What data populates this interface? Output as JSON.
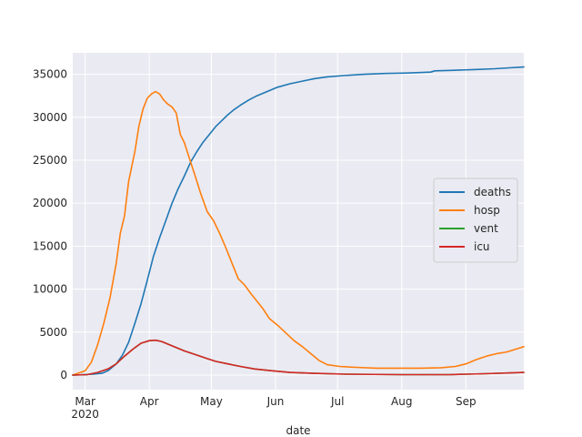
{
  "chart_data": {
    "type": "line",
    "title": "",
    "xlabel": "date",
    "ylabel": "",
    "grid": true,
    "legend_position": "center-right",
    "xlim": [
      "2020-02-24",
      "2020-09-29"
    ],
    "ylim": [
      -1700,
      37500
    ],
    "x_ticks": [
      {
        "date": "2020-03-01",
        "label": "Mar",
        "sublabel": "2020"
      },
      {
        "date": "2020-04-01",
        "label": "Apr",
        "sublabel": ""
      },
      {
        "date": "2020-05-01",
        "label": "May",
        "sublabel": ""
      },
      {
        "date": "2020-06-01",
        "label": "Jun",
        "sublabel": ""
      },
      {
        "date": "2020-07-01",
        "label": "Jul",
        "sublabel": ""
      },
      {
        "date": "2020-08-01",
        "label": "Aug",
        "sublabel": ""
      },
      {
        "date": "2020-09-01",
        "label": "Sep",
        "sublabel": ""
      }
    ],
    "y_ticks": [
      0,
      5000,
      10000,
      15000,
      20000,
      25000,
      30000,
      35000
    ],
    "series": [
      {
        "name": "deaths",
        "color": "#1f77b4",
        "points": [
          [
            "2020-02-24",
            0
          ],
          [
            "2020-03-05",
            100
          ],
          [
            "2020-03-09",
            200
          ],
          [
            "2020-03-12",
            500
          ],
          [
            "2020-03-16",
            1300
          ],
          [
            "2020-03-19",
            2300
          ],
          [
            "2020-03-22",
            3800
          ],
          [
            "2020-03-25",
            6000
          ],
          [
            "2020-03-28",
            8300
          ],
          [
            "2020-03-31",
            11000
          ],
          [
            "2020-04-03",
            13800
          ],
          [
            "2020-04-06",
            16000
          ],
          [
            "2020-04-09",
            18000
          ],
          [
            "2020-04-12",
            20000
          ],
          [
            "2020-04-15",
            21700
          ],
          [
            "2020-04-18",
            23200
          ],
          [
            "2020-04-21",
            24800
          ],
          [
            "2020-04-24",
            26000
          ],
          [
            "2020-04-27",
            27100
          ],
          [
            "2020-04-30",
            28000
          ],
          [
            "2020-05-03",
            28900
          ],
          [
            "2020-05-06",
            29600
          ],
          [
            "2020-05-09",
            30300
          ],
          [
            "2020-05-12",
            30900
          ],
          [
            "2020-05-15",
            31400
          ],
          [
            "2020-05-19",
            32000
          ],
          [
            "2020-05-23",
            32500
          ],
          [
            "2020-05-28",
            33000
          ],
          [
            "2020-06-02",
            33500
          ],
          [
            "2020-06-08",
            33900
          ],
          [
            "2020-06-14",
            34200
          ],
          [
            "2020-06-20",
            34500
          ],
          [
            "2020-06-26",
            34700
          ],
          [
            "2020-07-04",
            34850
          ],
          [
            "2020-07-14",
            35000
          ],
          [
            "2020-07-24",
            35100
          ],
          [
            "2020-08-04",
            35150
          ],
          [
            "2020-08-15",
            35250
          ],
          [
            "2020-08-17",
            35400
          ],
          [
            "2020-08-25",
            35450
          ],
          [
            "2020-09-05",
            35550
          ],
          [
            "2020-09-15",
            35650
          ],
          [
            "2020-09-22",
            35750
          ],
          [
            "2020-09-29",
            35850
          ]
        ]
      },
      {
        "name": "hosp",
        "color": "#ff7f0e",
        "points": [
          [
            "2020-02-24",
            0
          ],
          [
            "2020-03-01",
            500
          ],
          [
            "2020-03-04",
            1500
          ],
          [
            "2020-03-07",
            3500
          ],
          [
            "2020-03-10",
            6000
          ],
          [
            "2020-03-13",
            9000
          ],
          [
            "2020-03-16",
            13000
          ],
          [
            "2020-03-18",
            16500
          ],
          [
            "2020-03-20",
            18500
          ],
          [
            "2020-03-22",
            22500
          ],
          [
            "2020-03-25",
            26000
          ],
          [
            "2020-03-27",
            29000
          ],
          [
            "2020-03-29",
            31000
          ],
          [
            "2020-03-31",
            32200
          ],
          [
            "2020-04-02",
            32700
          ],
          [
            "2020-04-04",
            33000
          ],
          [
            "2020-04-06",
            32700
          ],
          [
            "2020-04-08",
            32000
          ],
          [
            "2020-04-10",
            31500
          ],
          [
            "2020-04-12",
            31200
          ],
          [
            "2020-04-14",
            30500
          ],
          [
            "2020-04-16",
            28000
          ],
          [
            "2020-04-18",
            27000
          ],
          [
            "2020-04-20",
            25500
          ],
          [
            "2020-04-23",
            23300
          ],
          [
            "2020-04-26",
            21000
          ],
          [
            "2020-04-29",
            19000
          ],
          [
            "2020-05-02",
            18000
          ],
          [
            "2020-05-05",
            16500
          ],
          [
            "2020-05-08",
            14800
          ],
          [
            "2020-05-11",
            13000
          ],
          [
            "2020-05-14",
            11200
          ],
          [
            "2020-05-17",
            10500
          ],
          [
            "2020-05-20",
            9500
          ],
          [
            "2020-05-23",
            8600
          ],
          [
            "2020-05-26",
            7700
          ],
          [
            "2020-05-29",
            6600
          ],
          [
            "2020-06-02",
            5800
          ],
          [
            "2020-06-06",
            4900
          ],
          [
            "2020-06-10",
            4000
          ],
          [
            "2020-06-14",
            3300
          ],
          [
            "2020-06-18",
            2500
          ],
          [
            "2020-06-22",
            1700
          ],
          [
            "2020-06-26",
            1200
          ],
          [
            "2020-07-02",
            1000
          ],
          [
            "2020-07-10",
            900
          ],
          [
            "2020-07-20",
            800
          ],
          [
            "2020-07-31",
            800
          ],
          [
            "2020-08-10",
            800
          ],
          [
            "2020-08-20",
            850
          ],
          [
            "2020-08-27",
            1000
          ],
          [
            "2020-09-01",
            1300
          ],
          [
            "2020-09-06",
            1800
          ],
          [
            "2020-09-11",
            2200
          ],
          [
            "2020-09-16",
            2500
          ],
          [
            "2020-09-21",
            2700
          ],
          [
            "2020-09-25",
            3000
          ],
          [
            "2020-09-29",
            3300
          ]
        ]
      },
      {
        "name": "vent",
        "color": "#2ca02c",
        "points": [
          [
            "2020-02-24",
            0
          ],
          [
            "2020-03-02",
            50
          ],
          [
            "2020-03-07",
            300
          ],
          [
            "2020-03-12",
            700
          ],
          [
            "2020-03-16",
            1300
          ],
          [
            "2020-03-20",
            2200
          ],
          [
            "2020-03-24",
            3000
          ],
          [
            "2020-03-28",
            3700
          ],
          [
            "2020-04-01",
            4000
          ],
          [
            "2020-04-04",
            4050
          ],
          [
            "2020-04-07",
            3900
          ],
          [
            "2020-04-10",
            3600
          ],
          [
            "2020-04-14",
            3200
          ],
          [
            "2020-04-18",
            2800
          ],
          [
            "2020-04-23",
            2400
          ],
          [
            "2020-04-28",
            2000
          ],
          [
            "2020-05-03",
            1600
          ],
          [
            "2020-05-09",
            1300
          ],
          [
            "2020-05-15",
            1000
          ],
          [
            "2020-05-22",
            700
          ],
          [
            "2020-05-30",
            500
          ],
          [
            "2020-06-08",
            300
          ],
          [
            "2020-06-20",
            200
          ],
          [
            "2020-07-05",
            100
          ],
          [
            "2020-08-01",
            50
          ],
          [
            "2020-08-25",
            60
          ],
          [
            "2020-09-10",
            150
          ],
          [
            "2020-09-29",
            300
          ]
        ]
      },
      {
        "name": "icu",
        "color": "#d62728",
        "points": [
          [
            "2020-02-24",
            0
          ],
          [
            "2020-03-02",
            50
          ],
          [
            "2020-03-07",
            300
          ],
          [
            "2020-03-12",
            700
          ],
          [
            "2020-03-16",
            1300
          ],
          [
            "2020-03-20",
            2200
          ],
          [
            "2020-03-24",
            3000
          ],
          [
            "2020-03-28",
            3700
          ],
          [
            "2020-04-01",
            4000
          ],
          [
            "2020-04-04",
            4050
          ],
          [
            "2020-04-07",
            3900
          ],
          [
            "2020-04-10",
            3600
          ],
          [
            "2020-04-14",
            3200
          ],
          [
            "2020-04-18",
            2800
          ],
          [
            "2020-04-23",
            2400
          ],
          [
            "2020-04-28",
            2000
          ],
          [
            "2020-05-03",
            1600
          ],
          [
            "2020-05-09",
            1300
          ],
          [
            "2020-05-15",
            1000
          ],
          [
            "2020-05-22",
            700
          ],
          [
            "2020-05-30",
            500
          ],
          [
            "2020-06-08",
            300
          ],
          [
            "2020-06-20",
            200
          ],
          [
            "2020-07-05",
            100
          ],
          [
            "2020-08-01",
            50
          ],
          [
            "2020-08-25",
            60
          ],
          [
            "2020-09-10",
            150
          ],
          [
            "2020-09-29",
            300
          ]
        ]
      }
    ]
  },
  "colors": {
    "plot_background": "#eaeaf2",
    "grid": "#ffffff",
    "text": "#262626",
    "legend_background": "#eaeaf2",
    "legend_border": "#cccccc"
  }
}
